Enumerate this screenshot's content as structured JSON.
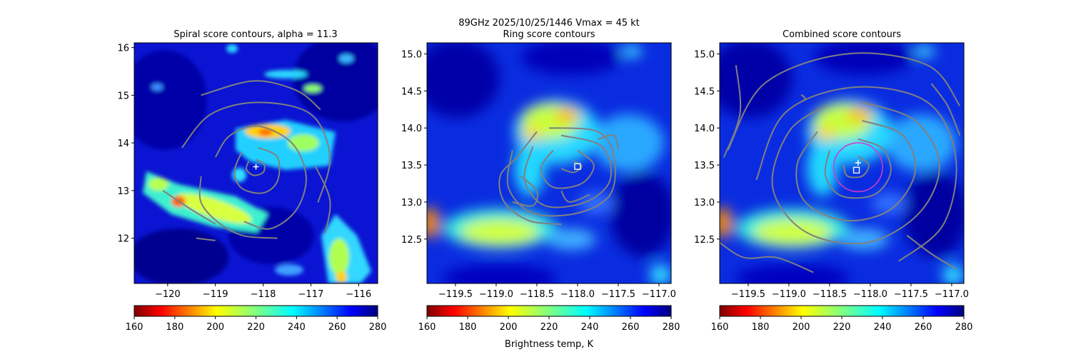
{
  "figure": {
    "suptitle_line1": "89GHz  2025/10/25/1446    Vmax = 45 kt",
    "colorbar_label": "Brightness temp, K",
    "colormap": "jet_r",
    "colors": {
      "contour": "#808080",
      "circle": "#cc3cc8",
      "marker": "#ffffff",
      "axes": "#000000"
    }
  },
  "chart_data": [
    {
      "type": "heatmap",
      "title": "Spiral score contours, alpha = 11.3",
      "xlim": [
        -120.7,
        -115.6
      ],
      "ylim": [
        11.05,
        16.1
      ],
      "xticks": [
        -120,
        -119,
        -118,
        -117,
        -116
      ],
      "xtick_labels": [
        "−120",
        "−119",
        "−118",
        "−117",
        "−116"
      ],
      "yticks": [
        12,
        13,
        14,
        15,
        16
      ],
      "ytick_labels": [
        "12",
        "13",
        "14",
        "15",
        "16"
      ],
      "center_marker": {
        "shape": "plus",
        "x": -118.15,
        "y": 13.5
      },
      "colorbar": {
        "range": [
          160,
          280
        ],
        "ticks": [
          160,
          180,
          200,
          220,
          240,
          260,
          280
        ]
      },
      "contours": [
        [
          [
            -118.15,
            13.65
          ],
          [
            -117.98,
            13.55
          ],
          [
            -118.0,
            13.38
          ],
          [
            -118.2,
            13.32
          ],
          [
            -118.35,
            13.45
          ],
          [
            -118.3,
            13.62
          ]
        ],
        [
          [
            -118.1,
            13.9
          ],
          [
            -117.7,
            13.7
          ],
          [
            -117.7,
            13.2
          ],
          [
            -118.0,
            12.95
          ],
          [
            -118.45,
            13.05
          ],
          [
            -118.6,
            13.4
          ],
          [
            -118.45,
            13.8
          ]
        ],
        [
          [
            -119.0,
            13.7
          ],
          [
            -118.7,
            14.15
          ],
          [
            -118.1,
            14.35
          ],
          [
            -117.4,
            14.0
          ],
          [
            -117.1,
            13.3
          ],
          [
            -117.3,
            12.6
          ],
          [
            -117.85,
            12.2
          ],
          [
            -118.4,
            12.35
          ]
        ],
        [
          [
            -119.7,
            13.9
          ],
          [
            -119.1,
            14.6
          ],
          [
            -118.1,
            14.85
          ],
          [
            -117.0,
            14.6
          ],
          [
            -116.6,
            13.7
          ],
          [
            -116.85,
            12.75
          ]
        ],
        [
          [
            -119.3,
            15.0
          ],
          [
            -118.2,
            15.3
          ],
          [
            -117.3,
            15.1
          ],
          [
            -116.8,
            14.7
          ]
        ],
        [
          [
            -119.3,
            13.3
          ],
          [
            -119.3,
            12.75
          ],
          [
            -118.9,
            12.3
          ],
          [
            -118.4,
            12.05
          ],
          [
            -117.7,
            12.0
          ]
        ],
        [
          [
            -120.1,
            13.0
          ],
          [
            -119.5,
            12.6
          ],
          [
            -119.0,
            12.3
          ]
        ],
        [
          [
            -119.4,
            12.0
          ],
          [
            -119.0,
            11.95
          ]
        ],
        [
          [
            -116.9,
            13.5
          ],
          [
            -116.6,
            12.8
          ],
          [
            -116.7,
            12.1
          ]
        ]
      ]
    },
    {
      "type": "heatmap",
      "title": "Ring score contours",
      "xlim": [
        -119.85,
        -116.85
      ],
      "ylim": [
        11.9,
        15.15
      ],
      "xticks": [
        -119.5,
        -119.0,
        -118.5,
        -118.0,
        -117.5,
        -117.0
      ],
      "xtick_labels": [
        "−119.5",
        "−119.0",
        "−118.5",
        "−118.0",
        "−117.5",
        "−117.0"
      ],
      "yticks": [
        12.5,
        13.0,
        13.5,
        14.0,
        14.5,
        15.0
      ],
      "ytick_labels": [
        "12.5",
        "13.0",
        "13.5",
        "14.0",
        "14.5",
        "15.0"
      ],
      "center_marker": {
        "shape": "square",
        "x": -118.0,
        "y": 13.48
      },
      "colorbar": {
        "range": [
          160,
          280
        ],
        "ticks": [
          160,
          180,
          200,
          220,
          240,
          260,
          280
        ]
      },
      "contours": [
        [
          [
            -118.05,
            13.55
          ],
          [
            -117.95,
            13.48
          ],
          [
            -118.05,
            13.4
          ],
          [
            -118.2,
            13.45
          ]
        ],
        [
          [
            -118.0,
            13.7
          ],
          [
            -117.8,
            13.5
          ],
          [
            -117.95,
            13.25
          ],
          [
            -118.3,
            13.2
          ],
          [
            -118.45,
            13.45
          ],
          [
            -118.3,
            13.7
          ]
        ],
        [
          [
            -118.2,
            13.9
          ],
          [
            -117.7,
            13.75
          ],
          [
            -117.6,
            13.3
          ],
          [
            -117.9,
            13.0
          ],
          [
            -118.4,
            12.95
          ],
          [
            -118.65,
            13.3
          ],
          [
            -118.55,
            13.75
          ]
        ],
        [
          [
            -118.35,
            14.0
          ],
          [
            -117.75,
            13.95
          ],
          [
            -117.55,
            13.6
          ],
          [
            -117.6,
            13.1
          ],
          [
            -118.0,
            12.85
          ],
          [
            -118.55,
            12.85
          ],
          [
            -118.85,
            13.2
          ],
          [
            -118.8,
            13.7
          ]
        ],
        [
          [
            -118.5,
            13.95
          ],
          [
            -118.75,
            13.6
          ],
          [
            -118.95,
            13.35
          ],
          [
            -118.9,
            13.0
          ],
          [
            -118.6,
            12.75
          ],
          [
            -118.2,
            12.7
          ]
        ],
        [
          [
            -118.7,
            13.35
          ],
          [
            -118.5,
            13.15
          ],
          [
            -118.55,
            12.95
          ],
          [
            -118.8,
            13.0
          ]
        ],
        [
          [
            -118.2,
            13.15
          ],
          [
            -118.1,
            13.0
          ],
          [
            -117.85,
            13.1
          ]
        ],
        [
          [
            -117.75,
            13.85
          ],
          [
            -117.55,
            13.9
          ],
          [
            -117.5,
            13.7
          ]
        ]
      ]
    },
    {
      "type": "heatmap",
      "title": "Combined score contours",
      "xlim": [
        -119.85,
        -116.85
      ],
      "ylim": [
        11.9,
        15.15
      ],
      "xticks": [
        -119.5,
        -119.0,
        -118.5,
        -118.0,
        -117.5,
        -117.0
      ],
      "xtick_labels": [
        "−119.5",
        "−119.0",
        "−118.5",
        "−118.0",
        "−117.5",
        "−117.0"
      ],
      "yticks": [
        12.5,
        13.0,
        13.5,
        14.0,
        14.5,
        15.0
      ],
      "ytick_labels": [
        "12.5",
        "13.0",
        "13.5",
        "14.0",
        "14.5",
        "15.0"
      ],
      "center_marker": {
        "shape": "plus",
        "x": -118.15,
        "y": 13.53
      },
      "second_marker": {
        "shape": "square",
        "x": -118.17,
        "y": 13.43
      },
      "ring_circle": {
        "cx": -118.15,
        "cy": 13.47,
        "r": 0.3
      },
      "colorbar": {
        "range": [
          160,
          280
        ],
        "ticks": [
          160,
          180,
          200,
          220,
          240,
          260,
          280
        ]
      },
      "contours": [
        [
          [
            -118.15,
            13.62
          ],
          [
            -118.02,
            13.5
          ],
          [
            -118.1,
            13.35
          ],
          [
            -118.28,
            13.35
          ],
          [
            -118.33,
            13.5
          ]
        ],
        [
          [
            -118.15,
            13.85
          ],
          [
            -117.85,
            13.72
          ],
          [
            -117.75,
            13.4
          ],
          [
            -117.95,
            13.1
          ],
          [
            -118.35,
            13.08
          ],
          [
            -118.55,
            13.35
          ],
          [
            -118.5,
            13.7
          ]
        ],
        [
          [
            -118.1,
            14.1
          ],
          [
            -117.6,
            13.9
          ],
          [
            -117.45,
            13.4
          ],
          [
            -117.75,
            12.9
          ],
          [
            -118.3,
            12.75
          ],
          [
            -118.8,
            13.0
          ],
          [
            -118.9,
            13.5
          ],
          [
            -118.65,
            13.95
          ]
        ],
        [
          [
            -118.1,
            14.35
          ],
          [
            -117.45,
            14.1
          ],
          [
            -117.15,
            13.5
          ],
          [
            -117.4,
            12.85
          ],
          [
            -118.05,
            12.45
          ],
          [
            -118.8,
            12.6
          ],
          [
            -119.2,
            13.2
          ],
          [
            -119.0,
            13.95
          ],
          [
            -118.55,
            14.3
          ]
        ],
        [
          [
            -119.4,
            13.3
          ],
          [
            -119.05,
            14.2
          ],
          [
            -118.2,
            14.55
          ],
          [
            -117.3,
            14.35
          ],
          [
            -116.95,
            13.6
          ],
          [
            -117.1,
            12.7
          ],
          [
            -117.65,
            12.2
          ]
        ],
        [
          [
            -119.75,
            13.7
          ],
          [
            -119.3,
            14.6
          ],
          [
            -118.3,
            15.0
          ],
          [
            -117.3,
            14.85
          ],
          [
            -116.9,
            14.3
          ]
        ],
        [
          [
            -119.65,
            14.85
          ],
          [
            -119.6,
            14.2
          ],
          [
            -119.8,
            13.6
          ]
        ],
        [
          [
            -119.85,
            12.45
          ],
          [
            -119.55,
            12.25
          ],
          [
            -119.15,
            12.25
          ],
          [
            -118.7,
            12.05
          ]
        ],
        [
          [
            -116.95,
            12.1
          ],
          [
            -117.25,
            12.3
          ],
          [
            -117.55,
            12.55
          ]
        ],
        [
          [
            -118.85,
            14.45
          ],
          [
            -118.8,
            14.4
          ],
          [
            -118.85,
            14.35
          ]
        ],
        [
          [
            -117.25,
            14.6
          ],
          [
            -117.05,
            14.3
          ],
          [
            -116.9,
            13.9
          ]
        ]
      ]
    }
  ]
}
